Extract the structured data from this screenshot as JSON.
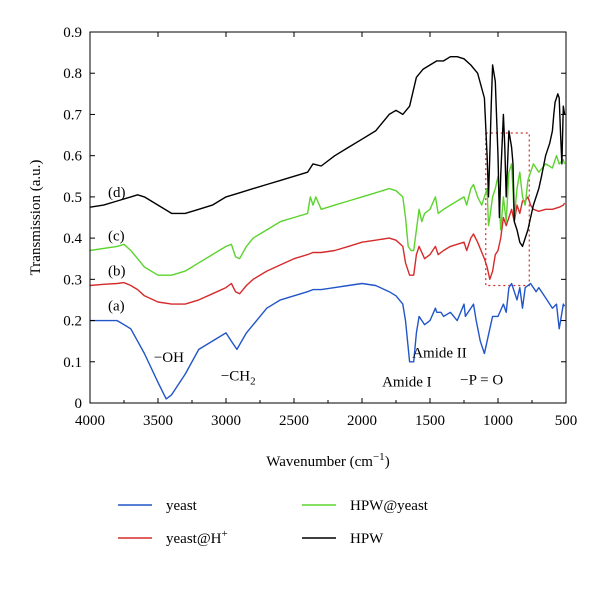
{
  "chart_data": {
    "type": "line",
    "title": "",
    "xlabel": "Wavenumber (cm",
    "xlabel_sup": "−1",
    "xlabel_close": ")",
    "ylabel": "Transmission (a.u.)",
    "xlim": [
      4000,
      500
    ],
    "ylim": [
      0,
      0.9
    ],
    "x_reversed": true,
    "x_ticks": [
      4000,
      3500,
      3000,
      2500,
      2000,
      1500,
      1000,
      500
    ],
    "y_ticks": [
      0,
      0.1,
      0.2,
      0.3,
      0.4,
      0.5,
      0.6,
      0.7,
      0.8,
      0.9
    ],
    "grid": false,
    "legend_position": "bottom",
    "series": [
      {
        "name": "yeast",
        "name_sup": "",
        "color": "#2155c8",
        "curve_label": "(a)",
        "x": [
          4000,
          3800,
          3700,
          3600,
          3500,
          3440,
          3400,
          3300,
          3200,
          3050,
          3000,
          2960,
          2920,
          2850,
          2800,
          2700,
          2600,
          2500,
          2400,
          2360,
          2300,
          2200,
          2100,
          2000,
          1900,
          1800,
          1750,
          1700,
          1680,
          1650,
          1620,
          1600,
          1580,
          1540,
          1500,
          1460,
          1450,
          1420,
          1400,
          1350,
          1300,
          1250,
          1240,
          1200,
          1180,
          1160,
          1130,
          1100,
          1080,
          1060,
          1040,
          1000,
          960,
          940,
          920,
          900,
          880,
          860,
          840,
          820,
          800,
          760,
          720,
          700,
          640,
          600,
          570,
          550,
          540,
          520,
          510
        ],
        "y": [
          0.2,
          0.2,
          0.18,
          0.12,
          0.05,
          0.01,
          0.02,
          0.07,
          0.13,
          0.16,
          0.17,
          0.15,
          0.13,
          0.17,
          0.19,
          0.23,
          0.25,
          0.26,
          0.27,
          0.275,
          0.275,
          0.28,
          0.285,
          0.29,
          0.285,
          0.27,
          0.26,
          0.24,
          0.2,
          0.1,
          0.1,
          0.17,
          0.21,
          0.19,
          0.2,
          0.23,
          0.22,
          0.22,
          0.21,
          0.22,
          0.2,
          0.24,
          0.21,
          0.23,
          0.24,
          0.2,
          0.15,
          0.12,
          0.15,
          0.18,
          0.21,
          0.21,
          0.24,
          0.22,
          0.28,
          0.29,
          0.27,
          0.25,
          0.28,
          0.23,
          0.28,
          0.29,
          0.27,
          0.28,
          0.25,
          0.23,
          0.24,
          0.18,
          0.2,
          0.24,
          0.235
        ]
      },
      {
        "name": "yeast@H",
        "name_sup": "+",
        "color": "#d52b2b",
        "curve_label": "(b)",
        "x": [
          4000,
          3900,
          3800,
          3750,
          3700,
          3650,
          3600,
          3500,
          3400,
          3300,
          3200,
          3100,
          3000,
          2960,
          2930,
          2900,
          2850,
          2800,
          2700,
          2600,
          2500,
          2400,
          2360,
          2300,
          2200,
          2100,
          2000,
          1900,
          1800,
          1750,
          1700,
          1680,
          1650,
          1620,
          1600,
          1580,
          1540,
          1500,
          1460,
          1440,
          1400,
          1350,
          1300,
          1250,
          1230,
          1200,
          1180,
          1150,
          1100,
          1080,
          1060,
          1040,
          1020,
          1000,
          980,
          960,
          940,
          920,
          900,
          880,
          860,
          840,
          820,
          800,
          780,
          760,
          740,
          700,
          650,
          600,
          550,
          520,
          510
        ],
        "y": [
          0.285,
          0.288,
          0.29,
          0.292,
          0.285,
          0.275,
          0.26,
          0.245,
          0.24,
          0.24,
          0.25,
          0.265,
          0.28,
          0.29,
          0.27,
          0.265,
          0.285,
          0.3,
          0.32,
          0.335,
          0.35,
          0.36,
          0.365,
          0.365,
          0.37,
          0.38,
          0.39,
          0.395,
          0.4,
          0.395,
          0.38,
          0.34,
          0.31,
          0.31,
          0.36,
          0.38,
          0.35,
          0.36,
          0.38,
          0.36,
          0.37,
          0.38,
          0.385,
          0.39,
          0.37,
          0.4,
          0.41,
          0.39,
          0.35,
          0.33,
          0.3,
          0.32,
          0.36,
          0.37,
          0.4,
          0.45,
          0.43,
          0.45,
          0.47,
          0.44,
          0.48,
          0.46,
          0.49,
          0.49,
          0.5,
          0.48,
          0.47,
          0.465,
          0.47,
          0.47,
          0.475,
          0.48,
          0.485
        ]
      },
      {
        "name": "HPW@yeast",
        "name_sup": "",
        "color": "#5cd32e",
        "curve_label": "(c)",
        "x": [
          4000,
          3900,
          3800,
          3750,
          3700,
          3650,
          3600,
          3500,
          3400,
          3300,
          3200,
          3100,
          3000,
          2960,
          2930,
          2900,
          2850,
          2800,
          2700,
          2600,
          2500,
          2400,
          2380,
          2360,
          2340,
          2300,
          2200,
          2100,
          2000,
          1900,
          1800,
          1750,
          1700,
          1680,
          1660,
          1640,
          1620,
          1600,
          1580,
          1560,
          1540,
          1500,
          1460,
          1440,
          1400,
          1350,
          1300,
          1250,
          1230,
          1200,
          1180,
          1150,
          1120,
          1100,
          1080,
          1070,
          1060,
          1040,
          1020,
          1000,
          980,
          960,
          940,
          920,
          900,
          880,
          860,
          840,
          820,
          800,
          780,
          760,
          740,
          720,
          700,
          650,
          600,
          570,
          550,
          520,
          510
        ],
        "y": [
          0.37,
          0.375,
          0.38,
          0.385,
          0.37,
          0.35,
          0.33,
          0.31,
          0.31,
          0.32,
          0.34,
          0.36,
          0.38,
          0.385,
          0.355,
          0.35,
          0.38,
          0.4,
          0.42,
          0.44,
          0.45,
          0.46,
          0.5,
          0.48,
          0.5,
          0.47,
          0.48,
          0.49,
          0.5,
          0.51,
          0.52,
          0.515,
          0.5,
          0.45,
          0.38,
          0.37,
          0.37,
          0.42,
          0.47,
          0.44,
          0.46,
          0.47,
          0.5,
          0.46,
          0.47,
          0.48,
          0.49,
          0.5,
          0.48,
          0.52,
          0.53,
          0.5,
          0.48,
          0.5,
          0.52,
          0.43,
          0.45,
          0.5,
          0.52,
          0.55,
          0.42,
          0.5,
          0.44,
          0.56,
          0.58,
          0.45,
          0.52,
          0.56,
          0.5,
          0.48,
          0.54,
          0.56,
          0.58,
          0.57,
          0.56,
          0.58,
          0.57,
          0.6,
          0.58,
          0.59,
          0.58
        ]
      },
      {
        "name": "HPW",
        "name_sup": "",
        "color": "#000000",
        "curve_label": "(d)",
        "x": [
          4000,
          3900,
          3800,
          3700,
          3650,
          3600,
          3500,
          3400,
          3300,
          3200,
          3100,
          3000,
          2900,
          2800,
          2700,
          2600,
          2500,
          2400,
          2360,
          2300,
          2200,
          2100,
          2000,
          1900,
          1850,
          1800,
          1750,
          1700,
          1650,
          1600,
          1550,
          1500,
          1450,
          1400,
          1350,
          1300,
          1250,
          1200,
          1150,
          1100,
          1080,
          1070,
          1060,
          1050,
          1040,
          1020,
          1000,
          990,
          980,
          960,
          950,
          940,
          920,
          900,
          890,
          880,
          860,
          840,
          820,
          800,
          780,
          760,
          740,
          720,
          700,
          680,
          650,
          620,
          600,
          590,
          580,
          570,
          560,
          550,
          540,
          530,
          520,
          510
        ],
        "y": [
          0.475,
          0.48,
          0.49,
          0.5,
          0.505,
          0.5,
          0.48,
          0.46,
          0.46,
          0.47,
          0.48,
          0.5,
          0.51,
          0.52,
          0.53,
          0.54,
          0.55,
          0.56,
          0.58,
          0.575,
          0.6,
          0.62,
          0.64,
          0.66,
          0.68,
          0.7,
          0.71,
          0.7,
          0.72,
          0.79,
          0.81,
          0.82,
          0.83,
          0.83,
          0.84,
          0.84,
          0.835,
          0.82,
          0.8,
          0.74,
          0.6,
          0.5,
          0.6,
          0.72,
          0.82,
          0.78,
          0.6,
          0.45,
          0.55,
          0.7,
          0.62,
          0.5,
          0.66,
          0.62,
          0.58,
          0.44,
          0.42,
          0.39,
          0.38,
          0.4,
          0.42,
          0.45,
          0.48,
          0.5,
          0.52,
          0.55,
          0.6,
          0.63,
          0.66,
          0.7,
          0.73,
          0.74,
          0.75,
          0.74,
          0.65,
          0.58,
          0.72,
          0.7
        ]
      }
    ],
    "annotations": [
      {
        "text": "−OH",
        "x": 3420,
        "y": 0.1
      },
      {
        "text": "−CH",
        "sub": "2",
        "x": 2910,
        "y": 0.055
      },
      {
        "text": "Amide II",
        "x": 1430,
        "y": 0.11
      },
      {
        "text": "Amide I",
        "x": 1670,
        "y": 0.04
      },
      {
        "text": "−P = O",
        "x": 1120,
        "y": 0.045
      }
    ],
    "highlight_box": {
      "x_range": [
        1090,
        770
      ],
      "y_range": [
        0.285,
        0.655
      ]
    }
  }
}
